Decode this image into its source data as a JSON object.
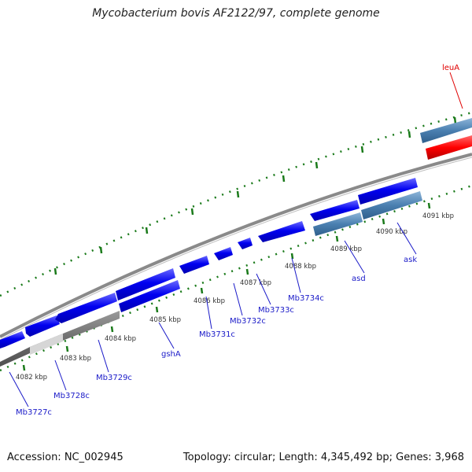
{
  "title": "Mycobacterium bovis AF2122/97, complete genome",
  "footer": {
    "accession": "Accession: NC_002945",
    "summary": "Topology: circular; Length: 4,345,492 bp; Genes: 3,968"
  },
  "colors": {
    "forward_gene": "#0000f0",
    "reverse_gene": "#0000f0",
    "operon": "#4a7fb0",
    "highlight": "#ff0000",
    "backbone": "#888888",
    "tick": "#1a7a1a",
    "label": "#1a1ac8"
  },
  "ticks": [
    "4082 kbp",
    "4083 kbp",
    "4084 kbp",
    "4085 kbp",
    "4086 kbp",
    "4087 kbp",
    "4088 kbp",
    "4089 kbp",
    "4090 kbp",
    "4091 kbp"
  ],
  "genes": [
    "Mb3727c",
    "Mb3728c",
    "Mb3729c",
    "gshA",
    "Mb3731c",
    "Mb3732c",
    "Mb3733c",
    "Mb3734c",
    "asd",
    "ask"
  ],
  "highlight_gene": "leuA"
}
